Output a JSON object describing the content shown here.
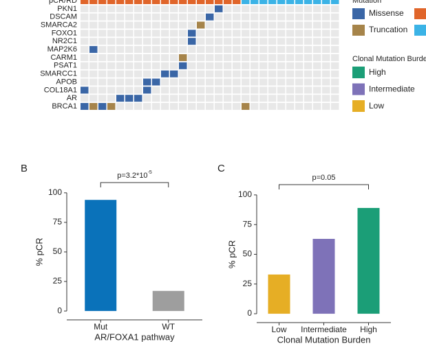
{
  "chart_data": [
    {
      "type": "oncoprint",
      "row_label": "pCR/RD",
      "genes": [
        "PKN1",
        "DSCAM",
        "SMARCA2",
        "FOXO1",
        "NR2C1",
        "MAP2K6",
        "CARM1",
        "PSAT1",
        "SMARCC1",
        "APOB",
        "COL18A1",
        "AR",
        "BRCA1"
      ],
      "response_groups": [
        {
          "color": "#e0652a",
          "count": 18
        },
        {
          "color": "#3bb3e6",
          "count": 11
        }
      ],
      "mutations": [
        {
          "gene": 0,
          "sample": 15,
          "type": 0
        },
        {
          "gene": 1,
          "sample": 14,
          "type": 0
        },
        {
          "gene": 2,
          "sample": 13,
          "type": 1
        },
        {
          "gene": 3,
          "sample": 12,
          "type": 0
        },
        {
          "gene": 4,
          "sample": 12,
          "type": 0
        },
        {
          "gene": 5,
          "sample": 1,
          "type": 0
        },
        {
          "gene": 6,
          "sample": 11,
          "type": 1
        },
        {
          "gene": 7,
          "sample": 11,
          "type": 0
        },
        {
          "gene": 8,
          "sample": 9,
          "type": 0
        },
        {
          "gene": 8,
          "sample": 10,
          "type": 0
        },
        {
          "gene": 9,
          "sample": 7,
          "type": 0
        },
        {
          "gene": 9,
          "sample": 8,
          "type": 0
        },
        {
          "gene": 10,
          "sample": 0,
          "type": 0
        },
        {
          "gene": 10,
          "sample": 7,
          "type": 0
        },
        {
          "gene": 11,
          "sample": 4,
          "type": 0
        },
        {
          "gene": 11,
          "sample": 5,
          "type": 0
        },
        {
          "gene": 11,
          "sample": 6,
          "type": 0
        },
        {
          "gene": 12,
          "sample": 0,
          "type": 0
        },
        {
          "gene": 12,
          "sample": 1,
          "type": 1
        },
        {
          "gene": 12,
          "sample": 2,
          "type": 0
        },
        {
          "gene": 12,
          "sample": 3,
          "type": 1
        },
        {
          "gene": 12,
          "sample": 18,
          "type": 1
        }
      ],
      "mutation_legend": {
        "title": "Mutation",
        "entries": [
          {
            "name": "Missense",
            "color": "#3a66a6"
          },
          {
            "name": "Truncation",
            "color": "#a6844a"
          }
        ]
      },
      "response_legend_colors": [
        "#e0652a",
        "#3bb3e6"
      ],
      "burden_legend": {
        "title": "Clonal Mutation Burden",
        "entries": [
          {
            "name": "High",
            "color": "#1b9e77"
          },
          {
            "name": "Intermediate",
            "color": "#7e72b8"
          },
          {
            "name": "Low",
            "color": "#e6ae25"
          }
        ]
      }
    },
    {
      "type": "bar",
      "panel": "B",
      "categories": [
        "Mut",
        "WT"
      ],
      "values": [
        94,
        17
      ],
      "colors": [
        "#0a72ba",
        "#9e9e9e"
      ],
      "ylim": [
        -4,
        104
      ],
      "yticks": [
        0,
        25,
        50,
        75,
        100
      ],
      "ylabel": "% pCR",
      "xlabel": "AR/FOXA1 pathway",
      "annotation": {
        "text": "p=3.2*10",
        "superscript": "-5"
      }
    },
    {
      "type": "bar",
      "panel": "C",
      "categories": [
        "Low",
        "Intermediate",
        "High"
      ],
      "values": [
        33,
        63,
        89
      ],
      "colors": [
        "#e6ae25",
        "#7e72b8",
        "#1b9e77"
      ],
      "ylim": [
        -4,
        104
      ],
      "yticks": [
        0,
        25,
        50,
        75,
        100
      ],
      "ylabel": "% pCR",
      "xlabel": "Clonal Mutation Burden",
      "annotation": {
        "text": "p=0.05"
      }
    }
  ]
}
